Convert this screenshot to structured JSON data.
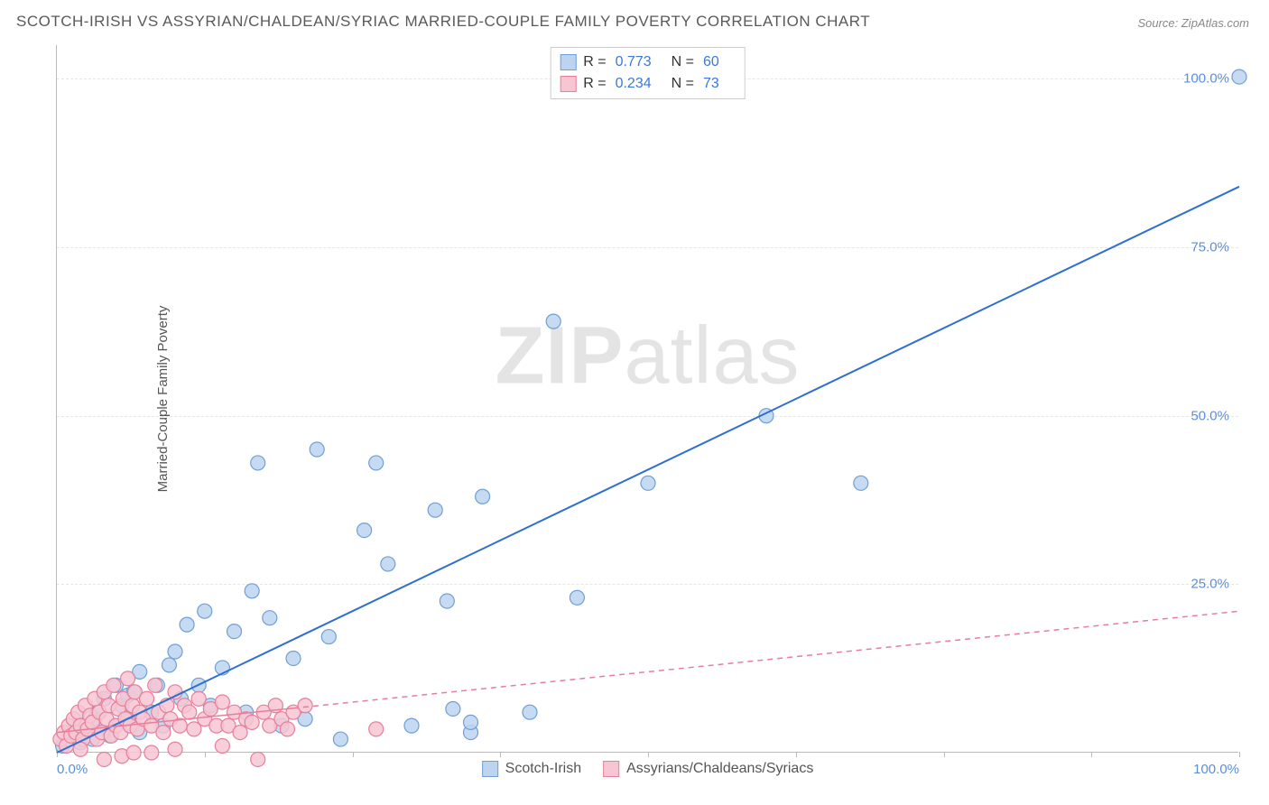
{
  "title": "SCOTCH-IRISH VS ASSYRIAN/CHALDEAN/SYRIAC MARRIED-COUPLE FAMILY POVERTY CORRELATION CHART",
  "source": "Source: ZipAtlas.com",
  "ylabel": "Married-Couple Family Poverty",
  "watermark_bold": "ZIP",
  "watermark_rest": "atlas",
  "chart": {
    "type": "scatter",
    "xlim": [
      0,
      100
    ],
    "ylim": [
      0,
      105
    ],
    "xtick_positions": [
      0,
      12.5,
      25,
      37.5,
      50,
      62.5,
      75,
      87.5,
      100
    ],
    "xtick_labels": {
      "0": "0.0%",
      "100": "100.0%"
    },
    "ytick_positions": [
      25,
      50,
      75,
      100
    ],
    "ytick_labels": {
      "25": "25.0%",
      "50": "50.0%",
      "75": "75.0%",
      "100": "100.0%"
    },
    "grid_color": "#e6e6e6",
    "axis_color": "#bbbbbb",
    "background_color": "#ffffff",
    "tick_label_color": "#5b8fd6",
    "series": [
      {
        "name": "Scotch-Irish",
        "marker_fill": "#bcd4ee",
        "marker_stroke": "#6f9fd8",
        "marker_radius": 8,
        "trend": {
          "y0": 0,
          "y100": 84,
          "color": "#2f6fd0",
          "dash": false,
          "width": 2,
          "x_solid_end": 20
        },
        "R": "0.773",
        "N": "60",
        "points": [
          [
            0.5,
            1
          ],
          [
            1,
            2
          ],
          [
            1.5,
            3
          ],
          [
            2,
            1.5
          ],
          [
            2.5,
            4
          ],
          [
            3,
            2
          ],
          [
            3.2,
            5
          ],
          [
            3.5,
            6
          ],
          [
            4,
            3
          ],
          [
            4,
            8
          ],
          [
            4.5,
            2.5
          ],
          [
            5,
            4
          ],
          [
            5,
            10
          ],
          [
            5.5,
            7
          ],
          [
            6,
            5
          ],
          [
            6,
            8.5
          ],
          [
            6.5,
            9
          ],
          [
            7,
            3
          ],
          [
            7,
            12
          ],
          [
            8,
            6
          ],
          [
            8.5,
            10
          ],
          [
            9,
            4
          ],
          [
            9.5,
            13
          ],
          [
            10,
            15
          ],
          [
            10.5,
            8
          ],
          [
            11,
            19
          ],
          [
            12,
            10
          ],
          [
            12.5,
            21
          ],
          [
            13,
            7
          ],
          [
            14,
            12.6
          ],
          [
            15,
            18
          ],
          [
            16,
            6
          ],
          [
            16.5,
            24
          ],
          [
            17,
            43
          ],
          [
            18,
            20
          ],
          [
            19,
            4
          ],
          [
            20,
            14
          ],
          [
            21,
            5
          ],
          [
            22,
            45
          ],
          [
            23,
            17.2
          ],
          [
            24,
            2
          ],
          [
            26,
            33
          ],
          [
            27,
            43
          ],
          [
            28,
            28
          ],
          [
            30,
            4
          ],
          [
            32,
            36
          ],
          [
            33,
            22.5
          ],
          [
            33.5,
            6.5
          ],
          [
            35,
            3
          ],
          [
            35,
            4.5
          ],
          [
            36,
            38
          ],
          [
            40,
            6
          ],
          [
            42,
            64
          ],
          [
            44,
            23
          ],
          [
            50,
            40
          ],
          [
            60,
            50
          ],
          [
            68,
            40
          ],
          [
            100,
            100.3
          ]
        ]
      },
      {
        "name": "Assyrians/Chaldeans/Syriacs",
        "marker_fill": "#f6c6d2",
        "marker_stroke": "#e77f9a",
        "marker_radius": 8,
        "trend": {
          "y0": 3,
          "y100": 21,
          "color": "#e77f9a",
          "dash": true,
          "width": 1.5,
          "x_solid_end": 20
        },
        "R": "0.234",
        "N": "73",
        "points": [
          [
            0.3,
            2
          ],
          [
            0.6,
            3
          ],
          [
            0.8,
            1
          ],
          [
            1,
            4
          ],
          [
            1.2,
            2.5
          ],
          [
            1.4,
            5
          ],
          [
            1.6,
            3
          ],
          [
            1.8,
            6
          ],
          [
            2,
            4
          ],
          [
            2.2,
            2
          ],
          [
            2.4,
            7
          ],
          [
            2.6,
            3.5
          ],
          [
            2.8,
            5.5
          ],
          [
            3,
            4.5
          ],
          [
            3.2,
            8
          ],
          [
            3.4,
            2
          ],
          [
            3.6,
            6
          ],
          [
            3.8,
            3
          ],
          [
            4,
            9
          ],
          [
            4.2,
            5
          ],
          [
            4.4,
            7
          ],
          [
            4.6,
            2.5
          ],
          [
            4.8,
            10
          ],
          [
            5,
            4
          ],
          [
            5.2,
            6.5
          ],
          [
            5.4,
            3
          ],
          [
            5.6,
            8
          ],
          [
            5.8,
            5
          ],
          [
            6,
            11
          ],
          [
            6.2,
            4
          ],
          [
            6.4,
            7
          ],
          [
            6.6,
            9
          ],
          [
            6.8,
            3.5
          ],
          [
            7,
            6
          ],
          [
            7.3,
            5
          ],
          [
            7.6,
            8
          ],
          [
            8,
            4
          ],
          [
            8.3,
            10
          ],
          [
            8.6,
            6
          ],
          [
            9,
            3
          ],
          [
            9.3,
            7
          ],
          [
            9.6,
            5
          ],
          [
            10,
            9
          ],
          [
            10.4,
            4
          ],
          [
            10.8,
            7
          ],
          [
            11.2,
            6
          ],
          [
            11.6,
            3.5
          ],
          [
            12,
            8
          ],
          [
            12.5,
            5
          ],
          [
            13,
            6.5
          ],
          [
            13.5,
            4
          ],
          [
            14,
            1
          ],
          [
            14,
            7.5
          ],
          [
            14.5,
            4
          ],
          [
            15,
            6
          ],
          [
            15.5,
            3
          ],
          [
            16,
            5
          ],
          [
            16.5,
            4.5
          ],
          [
            17,
            -1
          ],
          [
            17.5,
            6
          ],
          [
            18,
            4
          ],
          [
            18.5,
            7
          ],
          [
            19,
            5
          ],
          [
            19.5,
            3.5
          ],
          [
            20,
            6
          ],
          [
            21,
            7
          ],
          [
            27,
            3.5
          ],
          [
            4,
            -1
          ],
          [
            5.5,
            -0.5
          ],
          [
            8,
            0
          ],
          [
            2,
            0.5
          ],
          [
            6.5,
            0
          ],
          [
            10,
            0.5
          ]
        ]
      }
    ],
    "legend_top": {
      "border_color": "#cccccc",
      "value_color": "#3b78d8"
    },
    "legend_bottom": {
      "items": [
        {
          "label": "Scotch-Irish",
          "fill": "#bcd4ee",
          "stroke": "#6f9fd8"
        },
        {
          "label": "Assyrians/Chaldeans/Syriacs",
          "fill": "#f6c6d2",
          "stroke": "#e77f9a"
        }
      ]
    }
  }
}
